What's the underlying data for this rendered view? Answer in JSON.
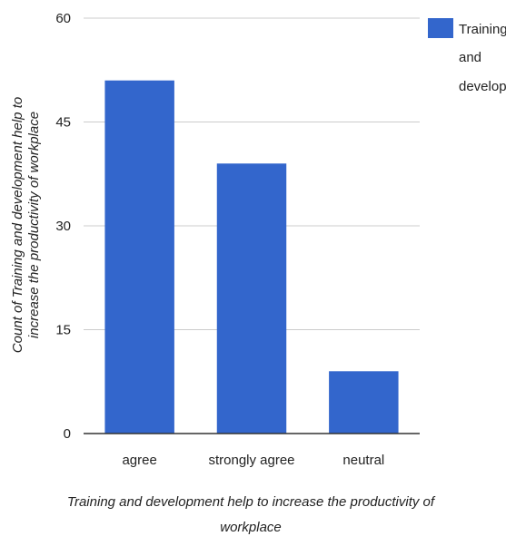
{
  "chart_data": {
    "type": "bar",
    "categories": [
      "agree",
      "strongly agree",
      "neutral"
    ],
    "series": [
      {
        "name": "Training and develop...",
        "values": [
          51,
          39,
          9
        ],
        "color": "#3366cc"
      }
    ],
    "xlabel_lines": [
      "Training and development help to increase the productivity of",
      "workplace"
    ],
    "ylabel_lines": [
      "Count of Training and development help to",
      "increase the productivity of workplace"
    ],
    "yticks": [
      "0",
      "15",
      "30",
      "45",
      "60"
    ],
    "ylim": [
      0,
      60
    ],
    "grid": true,
    "legend_position": "right",
    "legend_lines": [
      "Training",
      "and",
      "develop..."
    ]
  }
}
